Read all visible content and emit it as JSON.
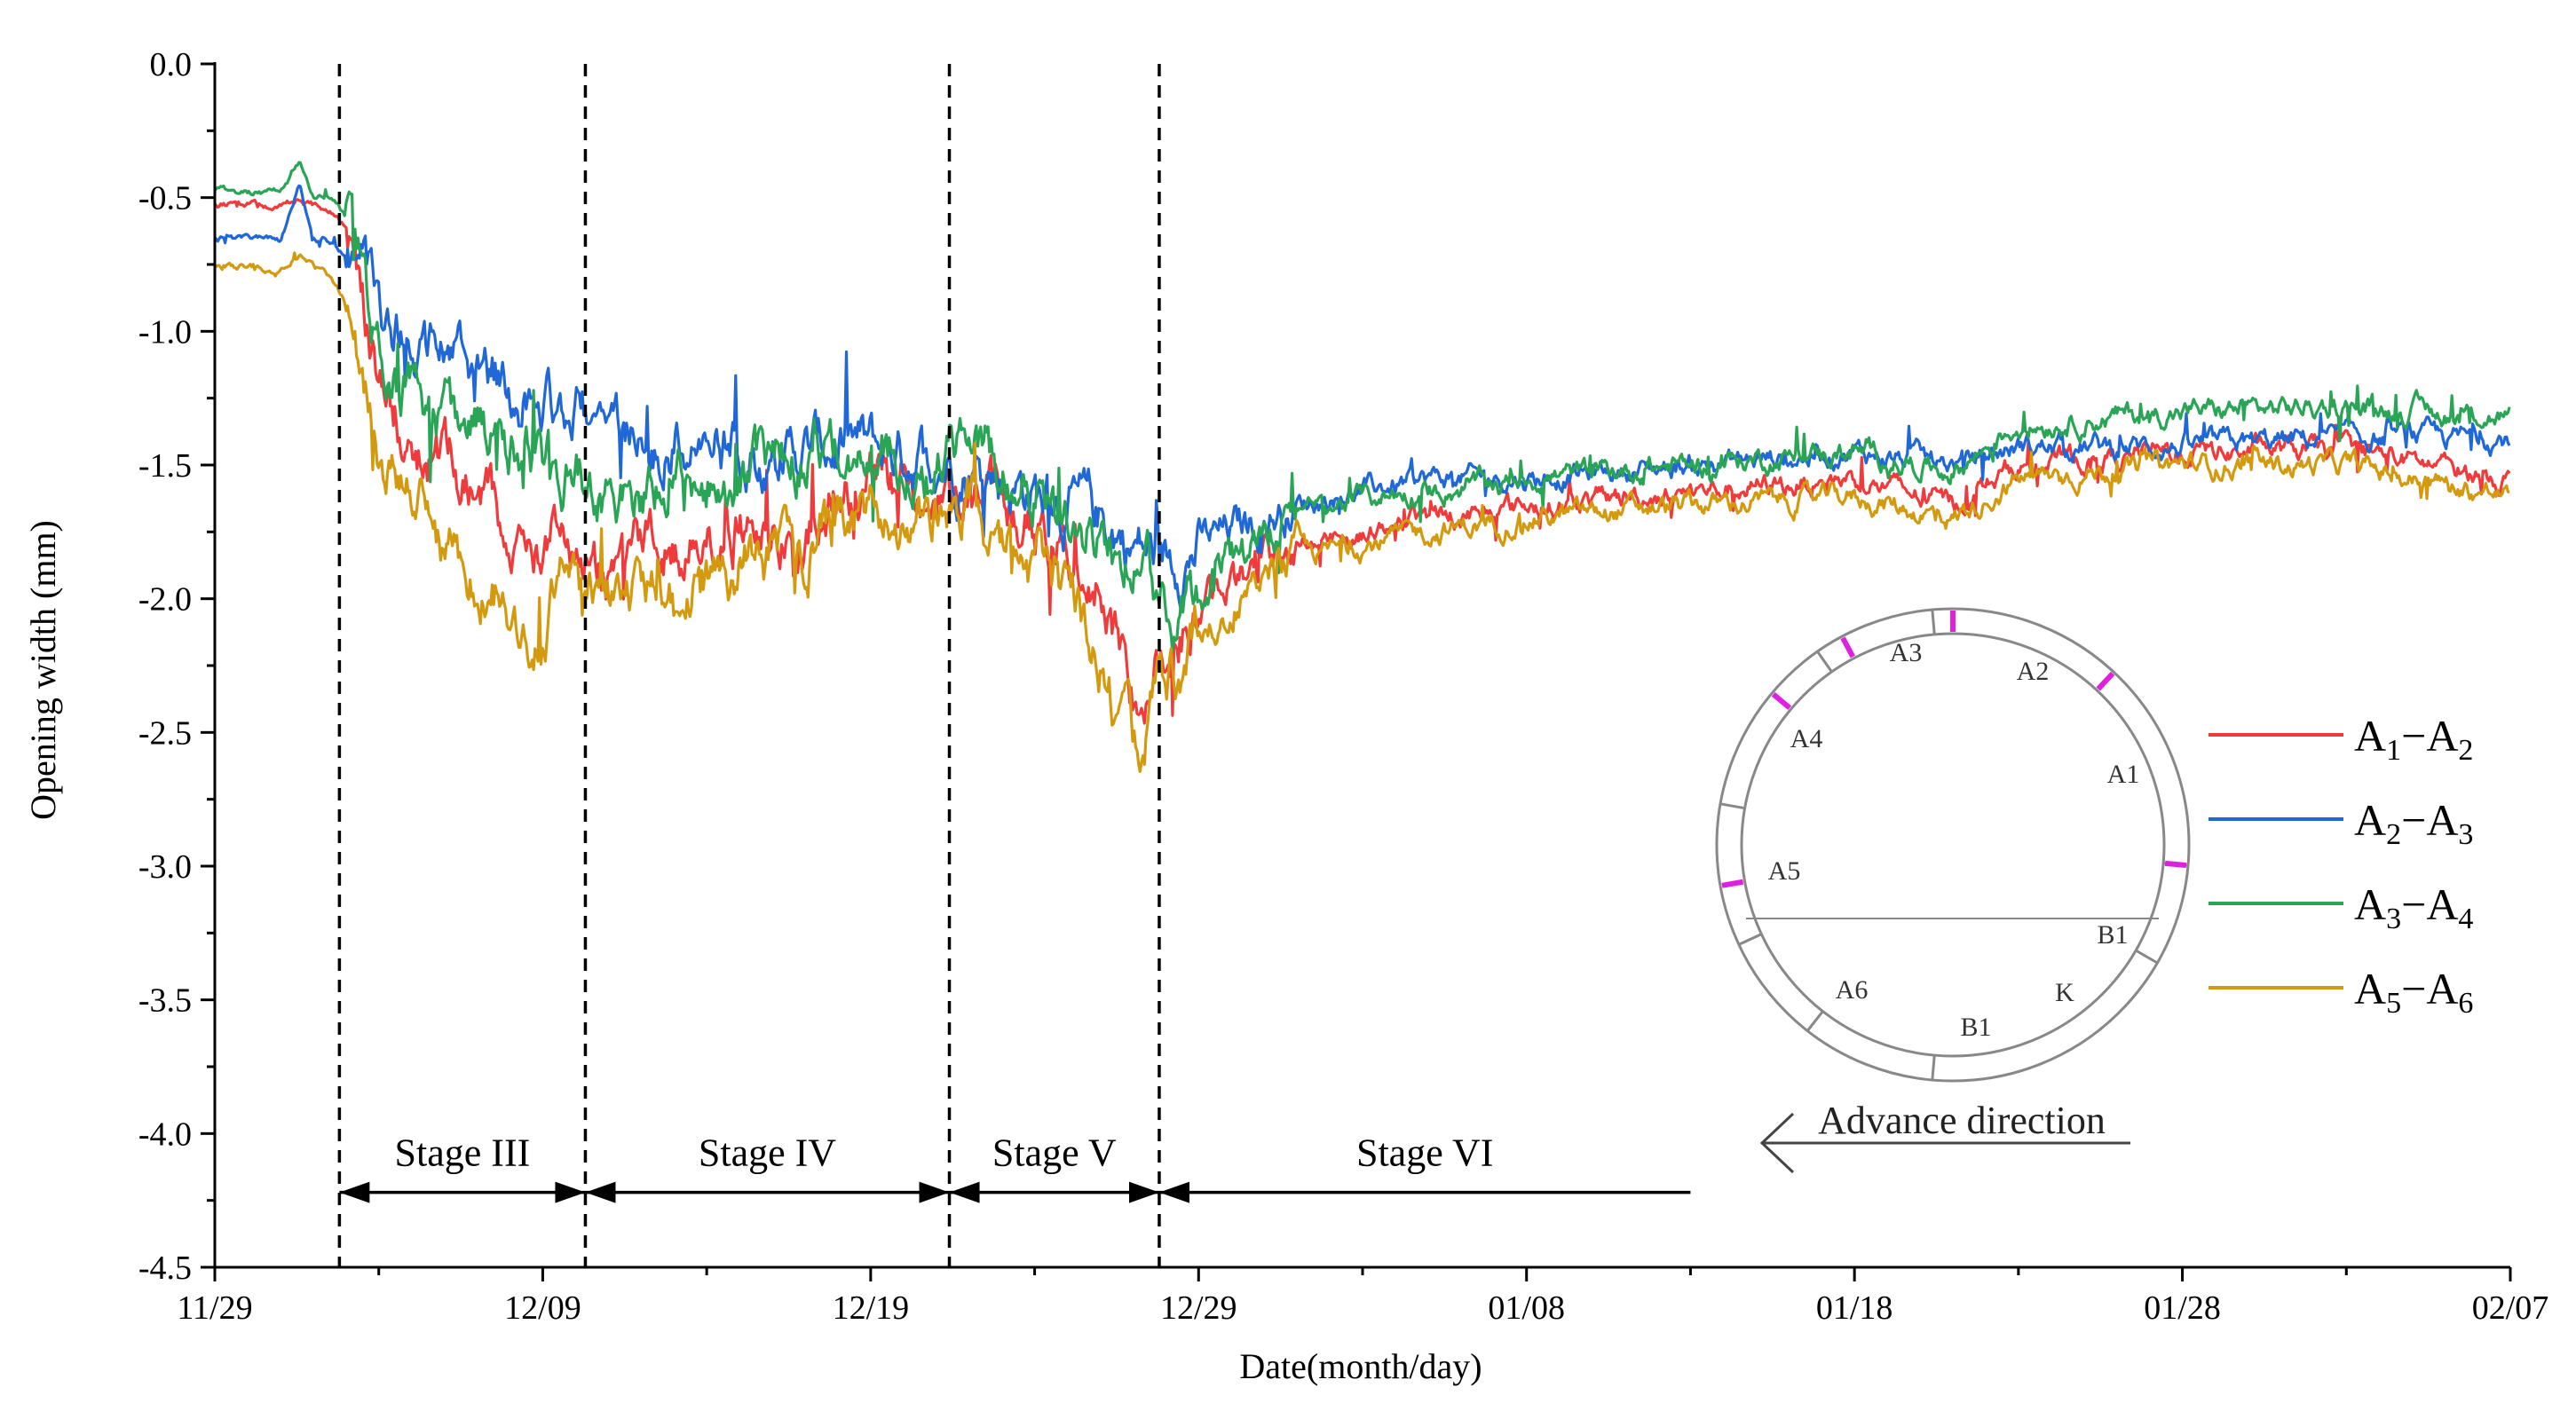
{
  "chart_data": {
    "type": "line",
    "title": "",
    "xlabel": "Date(month/day)",
    "ylabel": "Opening width (mm)",
    "xlim": [
      0,
      70
    ],
    "ylim": [
      -4.5,
      0.0
    ],
    "x_ticks": [
      {
        "day": 0,
        "label": "11/29"
      },
      {
        "day": 10,
        "label": "12/09"
      },
      {
        "day": 20,
        "label": "12/19"
      },
      {
        "day": 30,
        "label": "12/29"
      },
      {
        "day": 40,
        "label": "01/08"
      },
      {
        "day": 50,
        "label": "01/18"
      },
      {
        "day": 60,
        "label": "01/28"
      },
      {
        "day": 70,
        "label": "02/07"
      }
    ],
    "y_ticks": [
      {
        "value": 0.0,
        "label": "0.0"
      },
      {
        "value": -0.5,
        "label": "-0.5"
      },
      {
        "value": -1.0,
        "label": "-1.0"
      },
      {
        "value": -1.5,
        "label": "-1.5"
      },
      {
        "value": -2.0,
        "label": "-2.0"
      },
      {
        "value": -2.5,
        "label": "-2.5"
      },
      {
        "value": -3.0,
        "label": "-3.0"
      },
      {
        "value": -3.5,
        "label": "-3.5"
      },
      {
        "value": -4.0,
        "label": "-4.0"
      },
      {
        "value": -4.5,
        "label": "-4.5"
      }
    ],
    "x_minor_step": 5,
    "y_minor_step": 0.25,
    "stage_boundaries_day": [
      3.8,
      11.3,
      22.4,
      28.8
    ],
    "stages": [
      {
        "label": "Stage III",
        "start": 3.8,
        "end": 11.3
      },
      {
        "label": "Stage IV",
        "start": 11.3,
        "end": 22.4
      },
      {
        "label": "Stage V",
        "start": 22.4,
        "end": 28.8
      },
      {
        "label": "Stage VI",
        "start": 28.8,
        "end": 45
      }
    ],
    "stage_arrow_value": -4.22,
    "series": [
      {
        "name": "A1-A2",
        "main": "A",
        "sub1": "1",
        "sub2": "2",
        "color": "#ef3b3b",
        "x": [
          0,
          1,
          2,
          2.6,
          3,
          3.5,
          4.2,
          5,
          6,
          7,
          8,
          9,
          10,
          10.5,
          11,
          12,
          13,
          14,
          15,
          16,
          17,
          18,
          19,
          20,
          21,
          22,
          23,
          24,
          25,
          26,
          27,
          27.5,
          28,
          29,
          30,
          31,
          32,
          33,
          35,
          37,
          40,
          45,
          50,
          53,
          55,
          60,
          65,
          70
        ],
        "y": [
          -0.52,
          -0.53,
          -0.54,
          -0.5,
          -0.53,
          -0.55,
          -0.65,
          -1.2,
          -1.4,
          -1.5,
          -1.6,
          -1.75,
          -1.85,
          -1.6,
          -1.8,
          -1.9,
          -1.85,
          -1.8,
          -1.75,
          -1.7,
          -1.75,
          -1.8,
          -1.6,
          -1.55,
          -1.6,
          -1.62,
          -1.5,
          -1.65,
          -1.75,
          -1.8,
          -1.95,
          -2.2,
          -2.35,
          -2.15,
          -2.05,
          -1.95,
          -1.85,
          -1.8,
          -1.75,
          -1.7,
          -1.65,
          -1.6,
          -1.55,
          -1.65,
          -1.5,
          -1.45,
          -1.45,
          -1.55
        ]
      },
      {
        "name": "A2-A3",
        "main": "A",
        "sub1": "2",
        "sub2": "3",
        "color": "#2068d6",
        "x": [
          0,
          1,
          2,
          2.6,
          3,
          3.5,
          4.2,
          5,
          6,
          7,
          8,
          9,
          10,
          11,
          12,
          13,
          14,
          15,
          16,
          17,
          18,
          19,
          20,
          21,
          22,
          23,
          24,
          25,
          26,
          27,
          28,
          29,
          30,
          31,
          32,
          33,
          35,
          37,
          40,
          45,
          50,
          53,
          55,
          60,
          65,
          70
        ],
        "y": [
          -0.65,
          -0.65,
          -0.66,
          -0.45,
          -0.64,
          -0.66,
          -0.75,
          -0.9,
          -1.05,
          -1.1,
          -1.15,
          -1.2,
          -1.25,
          -1.3,
          -1.35,
          -1.4,
          -1.42,
          -1.44,
          -1.45,
          -1.45,
          -1.44,
          -1.43,
          -1.44,
          -1.45,
          -1.45,
          -1.5,
          -1.55,
          -1.6,
          -1.65,
          -1.7,
          -1.8,
          -1.85,
          -1.8,
          -1.75,
          -1.7,
          -1.65,
          -1.6,
          -1.55,
          -1.55,
          -1.5,
          -1.45,
          -1.5,
          -1.43,
          -1.43,
          -1.4,
          -1.4
        ]
      },
      {
        "name": "A3-A4",
        "main": "A",
        "sub1": "3",
        "sub2": "4",
        "color": "#2aa556",
        "x": [
          0,
          1,
          2,
          2.6,
          3,
          3.5,
          4.2,
          5,
          6,
          7,
          8,
          9,
          10,
          11,
          12,
          13,
          14,
          15,
          16,
          17,
          18,
          19,
          20,
          21,
          22,
          23,
          24,
          25,
          26,
          27,
          28,
          29,
          30,
          31,
          32,
          33,
          35,
          37,
          40,
          45,
          50,
          53,
          55,
          60,
          65,
          70
        ],
        "y": [
          -0.48,
          -0.48,
          -0.48,
          -0.35,
          -0.48,
          -0.5,
          -0.6,
          -1.1,
          -1.25,
          -1.3,
          -1.35,
          -1.45,
          -1.55,
          -1.5,
          -1.6,
          -1.65,
          -1.6,
          -1.55,
          -1.55,
          -1.5,
          -1.5,
          -1.45,
          -1.4,
          -1.45,
          -1.5,
          -1.4,
          -1.5,
          -1.6,
          -1.65,
          -1.75,
          -1.9,
          -2.0,
          -1.95,
          -1.85,
          -1.75,
          -1.7,
          -1.62,
          -1.6,
          -1.55,
          -1.5,
          -1.45,
          -1.52,
          -1.35,
          -1.3,
          -1.28,
          -1.32
        ]
      },
      {
        "name": "A5-A6",
        "main": "A",
        "sub1": "5",
        "sub2": "6",
        "color": "#d39a10",
        "x": [
          0,
          1,
          2,
          2.6,
          3,
          3.5,
          4.2,
          5,
          6,
          7,
          8,
          9,
          10,
          10.5,
          11,
          12,
          13,
          14,
          15,
          16,
          17,
          18,
          19,
          20,
          21,
          22,
          23,
          24,
          25,
          26,
          27,
          27.5,
          28,
          29,
          30,
          31,
          32,
          33,
          35,
          37,
          40,
          45,
          50,
          53,
          55,
          60,
          65,
          70
        ],
        "y": [
          -0.75,
          -0.76,
          -0.78,
          -0.7,
          -0.76,
          -0.8,
          -0.95,
          -1.4,
          -1.65,
          -1.8,
          -1.9,
          -2.05,
          -2.15,
          -1.9,
          -2.0,
          -2.05,
          -2.0,
          -1.95,
          -1.9,
          -1.85,
          -1.85,
          -1.8,
          -1.75,
          -1.72,
          -1.7,
          -1.65,
          -1.6,
          -1.8,
          -1.9,
          -2.0,
          -2.2,
          -2.45,
          -2.55,
          -2.3,
          -2.15,
          -2.0,
          -1.95,
          -1.85,
          -1.8,
          -1.75,
          -1.7,
          -1.65,
          -1.62,
          -1.7,
          -1.55,
          -1.5,
          -1.5,
          -1.62
        ]
      }
    ],
    "legend": {
      "position": "right"
    },
    "inset": {
      "segment_labels": [
        "A3",
        "A2",
        "A1",
        "A4",
        "A5",
        "B1",
        "A6",
        "B1",
        "K"
      ],
      "advance_label": "Advance direction"
    }
  }
}
